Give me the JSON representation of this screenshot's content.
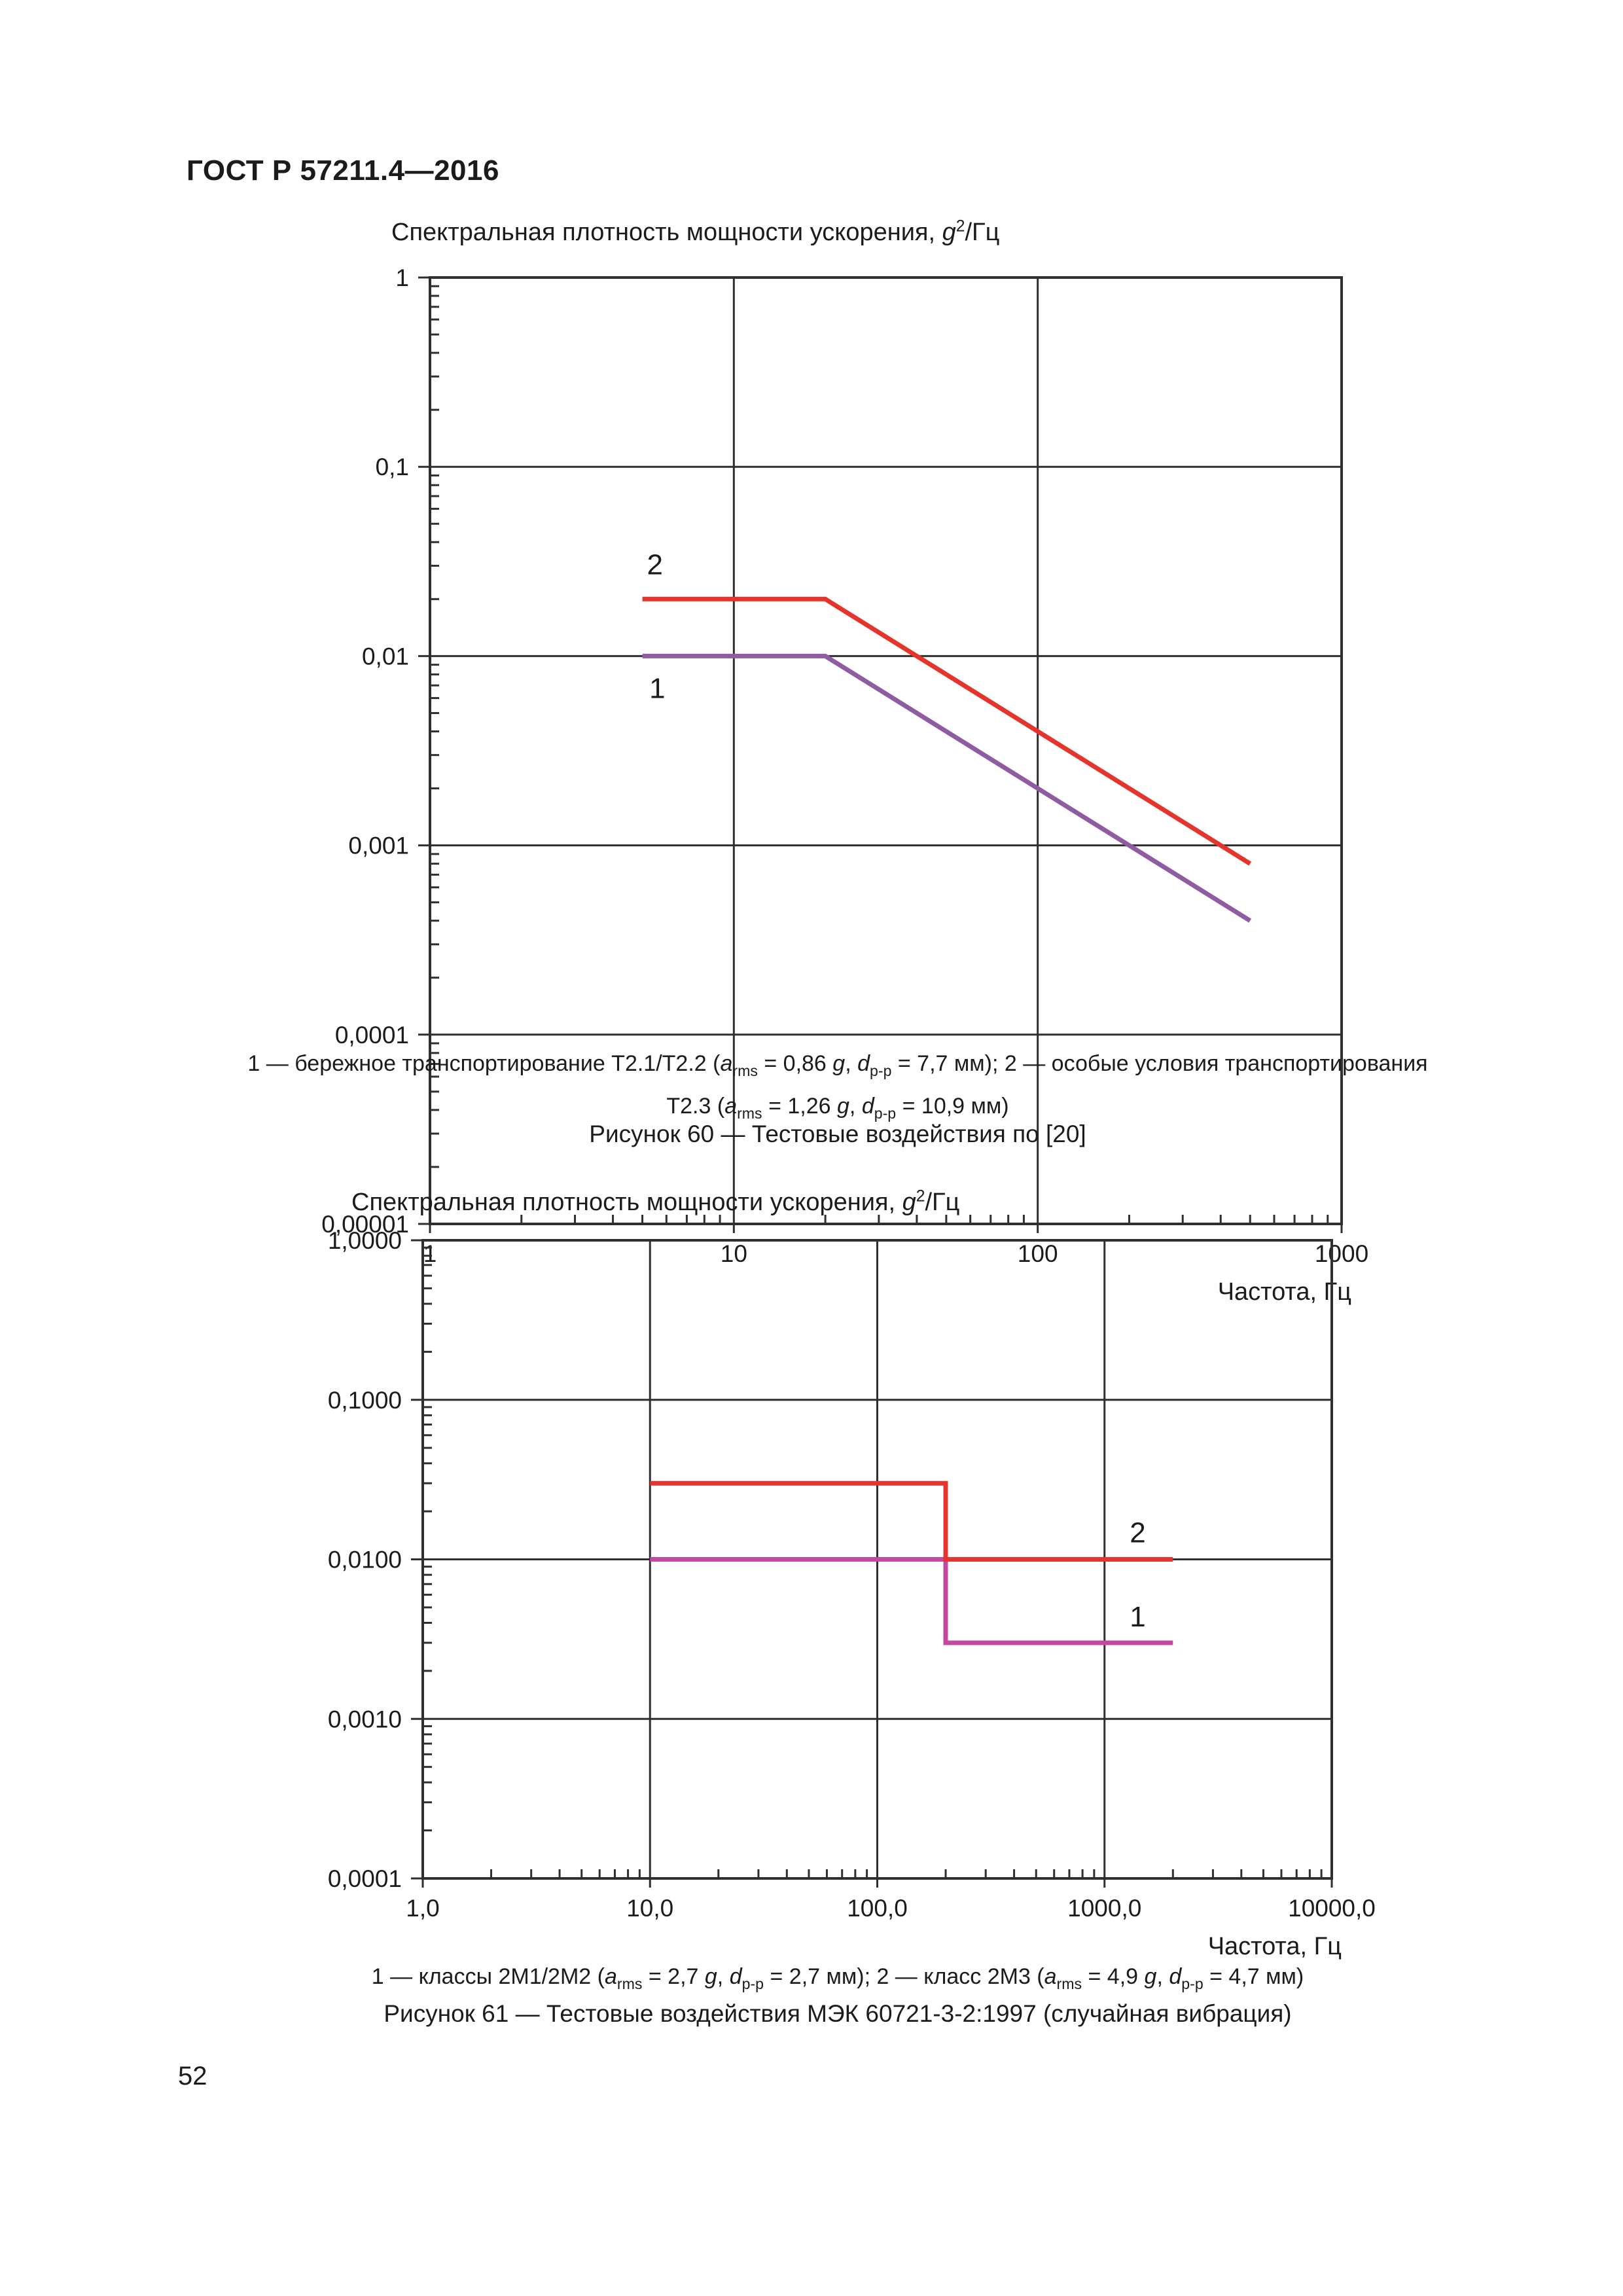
{
  "page": {
    "header": "ГОСТ Р 57211.4—2016",
    "page_number": "52"
  },
  "chart_data": [
    {
      "type": "line",
      "xscale": "log",
      "yscale": "log",
      "grid": true,
      "title": {
        "prefix": "Спектральная плотность мощности ускорения, ",
        "unit_symbol": "g",
        "unit_sup": "2",
        "unit_suffix": "/Гц"
      },
      "xlabel": "Частота, Гц",
      "xlim": [
        1,
        1000
      ],
      "ylim": [
        1e-05,
        1
      ],
      "x_ticks": [
        "1",
        "10",
        "100",
        "1000"
      ],
      "y_ticks": [
        "1",
        "0,1",
        "0,01",
        "0,001",
        "0,0001",
        "0,00001"
      ],
      "grid_color": "#2f2f2f",
      "series": [
        {
          "name": "1",
          "color": "#8f5ba3",
          "points": [
            [
              5,
              0.01
            ],
            [
              20,
              0.01
            ],
            [
              500,
              0.0004
            ]
          ],
          "label_at": [
            5.6,
            0.006
          ]
        },
        {
          "name": "2",
          "color": "#e4342b",
          "points": [
            [
              5,
              0.02
            ],
            [
              20,
              0.02
            ],
            [
              500,
              0.0008
            ]
          ],
          "label_at": [
            5.5,
            0.027
          ]
        }
      ]
    },
    {
      "type": "line",
      "xscale": "log",
      "yscale": "log",
      "grid": true,
      "title": {
        "prefix": "Спектральная плотность мощности ускорения, ",
        "unit_symbol": "g",
        "unit_sup": "2",
        "unit_suffix": "/Гц"
      },
      "xlabel": "Частота, Гц",
      "xlim": [
        1,
        10000
      ],
      "ylim": [
        0.0001,
        1
      ],
      "x_ticks": [
        "1,0",
        "10,0",
        "100,0",
        "1000,0",
        "10000,0"
      ],
      "y_ticks": [
        "1,0000",
        "0,1000",
        "0,0100",
        "0,0010",
        "0,0001"
      ],
      "grid_color": "#2f2f2f",
      "series": [
        {
          "name": "1",
          "color": "#c5479f",
          "points": [
            [
              10,
              0.01
            ],
            [
              200,
              0.01
            ],
            [
              200,
              0.003
            ],
            [
              2000,
              0.003
            ]
          ],
          "label_at": [
            1400,
            0.0038
          ]
        },
        {
          "name": "2",
          "color": "#e4342b",
          "points": [
            [
              10,
              0.03
            ],
            [
              200,
              0.03
            ],
            [
              200,
              0.01
            ],
            [
              2000,
              0.01
            ]
          ],
          "label_at": [
            1400,
            0.0128
          ]
        }
      ]
    }
  ],
  "captions": {
    "fig60": {
      "line1": [
        {
          "t": "1 — бережное транспортирование Т2.1/Т2.2 ("
        },
        {
          "i": "a"
        },
        {
          "s": "rms"
        },
        {
          "t": " = 0,86 "
        },
        {
          "i": "g"
        },
        {
          "t": ", "
        },
        {
          "i": "d"
        },
        {
          "s": "p-p"
        },
        {
          "t": " = 7,7 мм); 2 — особые условия транспортирования"
        }
      ],
      "line2": [
        {
          "t": "Т2.3 ("
        },
        {
          "i": "a"
        },
        {
          "s": "rms"
        },
        {
          "t": " = 1,26 "
        },
        {
          "i": "g"
        },
        {
          "t": ", "
        },
        {
          "i": "d"
        },
        {
          "s": "p-p"
        },
        {
          "t": " = 10,9 мм)"
        }
      ],
      "figure": "Рисунок 60 — Тестовые воздействия по [20]"
    },
    "fig61": {
      "line1": [
        {
          "t": "1 — классы 2М1/2М2 ("
        },
        {
          "i": "a"
        },
        {
          "s": "rms"
        },
        {
          "t": " = 2,7 "
        },
        {
          "i": "g"
        },
        {
          "t": ", "
        },
        {
          "i": "d"
        },
        {
          "s": "p-p"
        },
        {
          "t": " = 2,7 мм); 2 — класс 2М3 ("
        },
        {
          "i": "a"
        },
        {
          "s": "rms"
        },
        {
          "t": " = 4,9 "
        },
        {
          "i": "g"
        },
        {
          "t": ", "
        },
        {
          "i": "d"
        },
        {
          "s": "p-p"
        },
        {
          "t": " = 4,7 мм)"
        }
      ],
      "figure": "Рисунок 61 — Тестовые воздействия МЭК 60721-3-2:1997 (случайная вибрация)"
    }
  }
}
